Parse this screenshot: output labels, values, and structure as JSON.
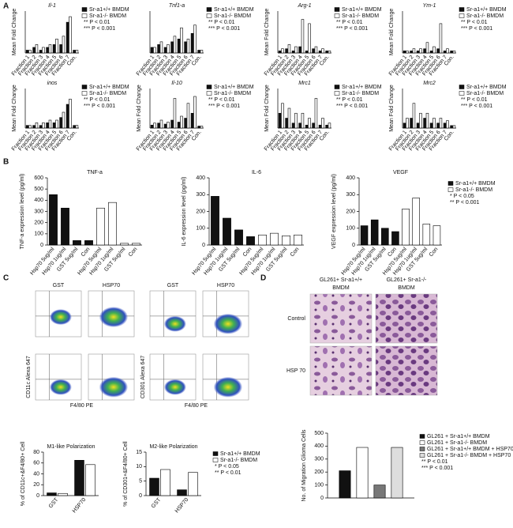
{
  "chart_data": [
    {
      "type": "bar",
      "title": "Il-1",
      "ylabel": "Mean Fold Change",
      "categories": [
        "Fraction 1",
        "Fraction 2",
        "Fraction 3",
        "Fraction 4",
        "Fraction 5",
        "Fraction 6",
        "Fraction 7",
        "Con."
      ],
      "ylim": [
        0,
        15
      ],
      "legend": true,
      "series": [
        {
          "name": "Sr-a1+/+ BMDM",
          "color": "#111111",
          "values": [
            1,
            2,
            1,
            2,
            3,
            3,
            11,
            1
          ]
        },
        {
          "name": "Sr-a1-/- BMDM",
          "color": "#ffffff",
          "values": [
            1,
            3,
            2,
            3,
            5,
            6,
            13,
            1
          ]
        }
      ],
      "annotations": [
        "** P < 0.01",
        "*** P < 0.001"
      ]
    },
    {
      "type": "bar",
      "title": "Tnf1-a",
      "categories": [
        "Fraction 1",
        "Fraction 2",
        "Fraction 3",
        "Fraction 4",
        "Fraction 5",
        "Fraction 6",
        "Fraction 7",
        "Con."
      ],
      "ylim": [
        0,
        15
      ],
      "legend": true,
      "series": [
        {
          "name": "Sr-a1+/+ BMDM",
          "color": "#111111",
          "values": [
            2,
            3,
            2,
            4,
            5,
            4,
            7,
            1
          ]
        },
        {
          "name": "Sr-a1-/- BMDM",
          "color": "#ffffff",
          "values": [
            2,
            4,
            3,
            6,
            9,
            5,
            10,
            1
          ]
        }
      ],
      "annotations": [
        "** P < 0.01",
        "*** P < 0.001"
      ]
    },
    {
      "type": "bar",
      "title": "Arg-1",
      "ylabel": "Mean Fold Change",
      "categories": [
        "Fraction 1",
        "Fraction 2",
        "Fraction 3",
        "Fraction 4",
        "Fraction 5",
        "Fraction 6",
        "Fraction 7",
        "Con."
      ],
      "ylim": [
        0,
        20
      ],
      "legend": true,
      "series": [
        {
          "name": "Sr-a1+/+ BMDM",
          "color": "#111111",
          "values": [
            1,
            2,
            1,
            3,
            1,
            2,
            1,
            1
          ]
        },
        {
          "name": "Sr-a1-/- BMDM",
          "color": "#ffffff",
          "values": [
            2,
            4,
            3,
            16,
            14,
            3,
            2,
            1
          ]
        }
      ],
      "annotations": [
        "** P < 0.01",
        "*** P < 0.001"
      ]
    },
    {
      "type": "bar",
      "title": "Ym-1",
      "ylabel": "Mean Fold Change",
      "categories": [
        "Fraction 1",
        "Fraction 2",
        "Fraction 3",
        "Fraction 4",
        "Fraction 5",
        "Fraction 6",
        "Fraction 7",
        "Con."
      ],
      "ylim": [
        0,
        20
      ],
      "legend": true,
      "series": [
        {
          "name": "Sr-a1+/+ BMDM",
          "color": "#111111",
          "values": [
            1,
            1,
            1,
            2,
            1,
            2,
            1,
            1
          ]
        },
        {
          "name": "Sr-a1-/- BMDM",
          "color": "#ffffff",
          "values": [
            1,
            2,
            2,
            5,
            3,
            14,
            2,
            1
          ]
        }
      ],
      "annotations": [
        "** P < 0.01",
        "*** P < 0.001"
      ]
    },
    {
      "type": "bar",
      "title": "inos",
      "ylabel": "Mean Fold Change",
      "categories": [
        "Fraction 1",
        "Fraction 2",
        "Fraction 3",
        "Fraction 4",
        "Fraction 5",
        "Fraction 6",
        "Fraction 7",
        "Con."
      ],
      "ylim": [
        0,
        15
      ],
      "legend": true,
      "series": [
        {
          "name": "Sr-a1+/+ BMDM",
          "color": "#111111",
          "values": [
            1,
            1,
            1,
            2,
            2,
            4,
            9,
            1
          ]
        },
        {
          "name": "Sr-a1-/- BMDM",
          "color": "#ffffff",
          "values": [
            1,
            2,
            2,
            3,
            3,
            6,
            11,
            1
          ]
        }
      ],
      "annotations": [
        "** P < 0.01",
        "*** P < 0.001"
      ]
    },
    {
      "type": "bar",
      "title": "Il-10",
      "ylabel": "Mean Fold Change",
      "categories": [
        "Fraction 1",
        "Fraction 2",
        "Fraction 3",
        "Fraction 4",
        "Fraction 5",
        "Fraction 6",
        "Fraction 7",
        "Con."
      ],
      "ylim": [
        0,
        40
      ],
      "legend": true,
      "series": [
        {
          "name": "Sr-a1+/+ BMDM",
          "color": "#111111",
          "values": [
            3,
            5,
            4,
            8,
            6,
            10,
            15,
            2
          ]
        },
        {
          "name": "Sr-a1-/- BMDM",
          "color": "#ffffff",
          "values": [
            5,
            8,
            6,
            30,
            12,
            25,
            32,
            2
          ]
        }
      ],
      "annotations": [
        "** P < 0.01",
        "*** P < 0.001"
      ]
    },
    {
      "type": "bar",
      "title": "Mrc1",
      "ylabel": "Mean Fold Change",
      "categories": [
        "Fraction 1",
        "Fraction 2",
        "Fraction 3",
        "Fraction 4",
        "Fraction 5",
        "Fraction 6",
        "Fraction 7",
        "Con."
      ],
      "ylim": [
        0,
        4
      ],
      "legend": true,
      "series": [
        {
          "name": "Sr-a1+/+ BMDM",
          "color": "#111111",
          "values": [
            1.5,
            1,
            0.5,
            0.5,
            0.3,
            0.5,
            0.3,
            0.3
          ]
        },
        {
          "name": "Sr-a1-/- BMDM",
          "color": "#ffffff",
          "values": [
            2.5,
            2,
            1.5,
            1.5,
            1,
            3,
            1,
            0.5
          ]
        }
      ],
      "annotations": [
        "** P < 0.01",
        "*** P < 0.001"
      ]
    },
    {
      "type": "bar",
      "title": "Mrc2",
      "ylabel": "Mean Fold Change",
      "categories": [
        "Fraction 1",
        "Fraction 2",
        "Fraction 3",
        "Fraction 4",
        "Fraction 5",
        "Fraction 6",
        "Fraction 7",
        "Con."
      ],
      "ylim": [
        0,
        8
      ],
      "legend": true,
      "series": [
        {
          "name": "Sr-a1+/+ BMDM",
          "color": "#111111",
          "values": [
            1,
            2,
            1,
            2,
            1,
            1,
            1,
            0.5
          ]
        },
        {
          "name": "Sr-a1-/- BMDM",
          "color": "#ffffff",
          "values": [
            2,
            5,
            3,
            3,
            2,
            2,
            1.5,
            0.5
          ]
        }
      ],
      "annotations": [
        "** P < 0.01",
        "*** P < 0.001"
      ]
    },
    {
      "type": "bar",
      "title": "TNF-a",
      "ylabel": "TNF-a expression level (pg/ml)",
      "categories": [
        "Hsp70 5ug/ml",
        "Hsp70 1ug/ml",
        "GST 5ug/ml",
        "Con",
        "Hsp70 5ug/ml",
        "Hsp70 1ug/ml",
        "GST 5ug/ml",
        "Con"
      ],
      "ylim": [
        0,
        600
      ],
      "yticks": [
        0,
        100,
        200,
        300,
        400,
        500,
        600
      ],
      "legend": false,
      "series": [
        {
          "color": "#111111",
          "values": [
            450,
            330,
            40,
            40,
            null,
            null,
            null,
            null
          ]
        },
        {
          "color": "#ffffff",
          "values": [
            null,
            null,
            null,
            null,
            330,
            380,
            15,
            15
          ]
        }
      ]
    },
    {
      "type": "bar",
      "title": "IL-6",
      "ylabel": "IL-6 expression level (pg/ml)",
      "categories": [
        "Hsp70 5ug/ml",
        "Hsp70 1ug/ml",
        "GST 5ug/ml",
        "Con",
        "Hsp70 5ug/ml",
        "Hsp70 1ug/ml",
        "GST 5ug/ml",
        "Con"
      ],
      "ylim": [
        0,
        400
      ],
      "yticks": [
        0,
        100,
        200,
        300,
        400
      ],
      "legend": false,
      "series": [
        {
          "color": "#111111",
          "values": [
            290,
            160,
            90,
            50,
            null,
            null,
            null,
            null
          ]
        },
        {
          "color": "#ffffff",
          "values": [
            null,
            null,
            null,
            null,
            60,
            70,
            55,
            60
          ]
        }
      ]
    },
    {
      "type": "bar",
      "title": "VEGF",
      "ylabel": "VEGF expression level (pg/ml)",
      "categories": [
        "Hsp70 5ug/ml",
        "Hsp70 1ug/ml",
        "GST 5ug/ml",
        "Con",
        "Hsp70 5ug/ml",
        "Hsp70 1ug/ml",
        "GST 5ug/ml",
        "Con"
      ],
      "ylim": [
        0,
        400
      ],
      "yticks": [
        0,
        100,
        200,
        300,
        400
      ],
      "legend": true,
      "series": [
        {
          "name": "Sr-a1+/+ BMDM",
          "color": "#111111",
          "values": [
            115,
            150,
            100,
            80,
            null,
            null,
            null,
            null
          ]
        },
        {
          "name": "Sr-a1-/- BMDM",
          "color": "#ffffff",
          "values": [
            null,
            null,
            null,
            null,
            215,
            280,
            125,
            115
          ]
        }
      ],
      "annotations": [
        "* P < 0.05",
        "** P < 0.001"
      ]
    },
    {
      "type": "bar",
      "title": "M1-like Polarization",
      "ylabel": "% of CD11c+&F4/80+ Cell",
      "categories": [
        "GST",
        "HSP70"
      ],
      "ylim": [
        0,
        80
      ],
      "yticks": [
        0,
        20,
        40,
        60,
        80
      ],
      "legend": false,
      "series": [
        {
          "color": "#111111",
          "values": [
            5,
            65
          ]
        },
        {
          "color": "#ffffff",
          "values": [
            4,
            57
          ]
        }
      ]
    },
    {
      "type": "bar",
      "title": "M2-like Polarization",
      "ylabel": "% of CD301+&F4/80+ Cell",
      "categories": [
        "GST",
        "HSP70"
      ],
      "ylim": [
        0,
        15
      ],
      "yticks": [
        0,
        5,
        10,
        15
      ],
      "legend": true,
      "series": [
        {
          "name": "Sr-a1+/+ BMDM",
          "color": "#111111",
          "values": [
            6,
            2
          ]
        },
        {
          "name": "Sr-a1-/- BMDM",
          "color": "#ffffff",
          "values": [
            9,
            8
          ]
        }
      ],
      "annotations": [
        "* P < 0.05",
        "** P < 0.01"
      ]
    },
    {
      "type": "bar",
      "ylabel": "No. of Migration Glioma Cells",
      "categories": [
        null
      ],
      "ylim": [
        0,
        500
      ],
      "yticks": [
        0,
        100,
        200,
        300,
        400,
        500
      ],
      "legend": true,
      "series": [
        {
          "name": "GL261 + Sr-a1+/+ BMDM",
          "color": "#111111",
          "values": [
            210
          ]
        },
        {
          "name": "GL261 + Sr-a1-/- BMDM",
          "color": "#ffffff",
          "values": [
            390
          ]
        },
        {
          "name": "GL261 + Sr-a1+/+ BMDM + HSP70",
          "color": "#777777",
          "values": [
            100
          ]
        },
        {
          "name": "GL261 + Sr-a1-/- BMDM + HSP70",
          "color": "#dddddd",
          "values": [
            390
          ]
        }
      ],
      "annotations": [
        "** P < 0.01",
        "*** P < 0.001"
      ]
    }
  ],
  "figure": {
    "panel_labels": [
      "A",
      "B",
      "C",
      "D"
    ],
    "flow": {
      "headers": [
        "GST",
        "HSP70",
        "GST",
        "HSP70"
      ],
      "y_labels": [
        "CD11c Alexa 647",
        "CD301 Alexa 647"
      ],
      "x_label": "F4/80 PE"
    },
    "microscopy": {
      "headers": [
        [
          "GL261+ Sr-a1+/+",
          "BMDM"
        ],
        [
          "GL261+ Sr-a1-/-",
          "BMDM"
        ]
      ],
      "rows": [
        "Control",
        "HSP 70"
      ]
    }
  }
}
